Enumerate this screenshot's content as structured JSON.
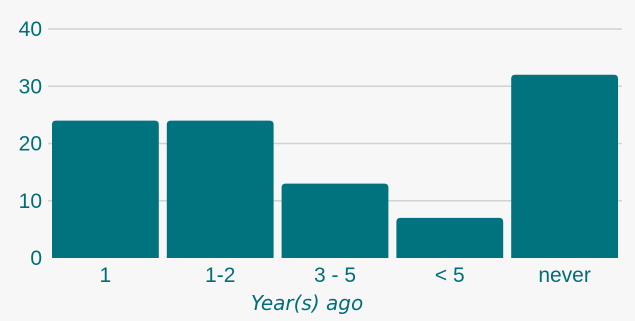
{
  "chart_data": {
    "type": "bar",
    "categories": [
      "1",
      "1-2",
      "3 - 5",
      "< 5",
      "never"
    ],
    "values": [
      24,
      24,
      13,
      7,
      32
    ],
    "title": "",
    "xlabel": "Year(s) ago",
    "ylabel": "",
    "ylim": [
      0,
      40
    ],
    "yticks": [
      0,
      10,
      20,
      30,
      40
    ],
    "grid": true,
    "legend": "none",
    "colors": {
      "bar": "#00737e",
      "text": "#006e7a",
      "grid": "#d2d2d2",
      "background": "#f7f7f7"
    }
  }
}
